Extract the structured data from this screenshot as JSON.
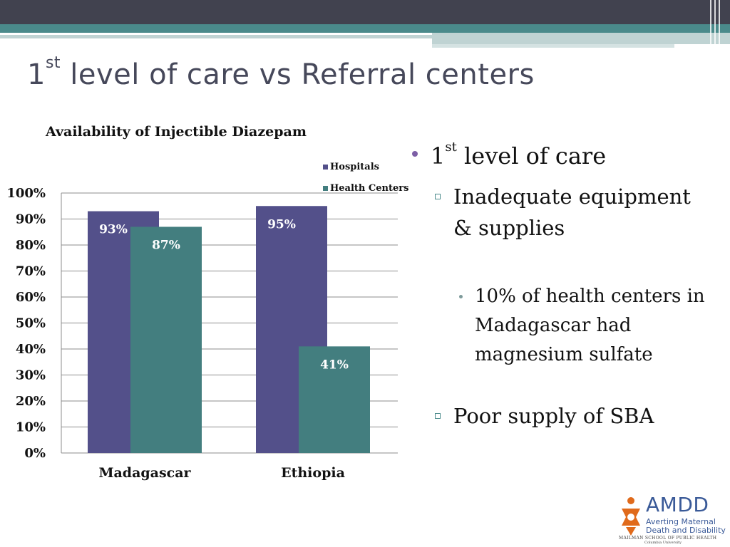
{
  "slide": {
    "title_sup_base": "1",
    "title_sup": "st",
    "title_rest": " level of care vs Referral centers"
  },
  "chart_data": {
    "type": "bar",
    "title": "Availability of Injectible Diazepam",
    "categories": [
      "Madagascar",
      "Ethiopia"
    ],
    "series": [
      {
        "name": "Hospitals",
        "values": [
          93,
          95
        ],
        "color": "#53508a"
      },
      {
        "name": "Health Centers",
        "values": [
          87,
          41
        ],
        "color": "#437e7f"
      }
    ],
    "data_labels": [
      [
        "93%",
        "95%"
      ],
      [
        "87%",
        "41%"
      ]
    ],
    "ylim": [
      0,
      100
    ],
    "yticks": [
      "0%",
      "10%",
      "20%",
      "30%",
      "40%",
      "50%",
      "60%",
      "70%",
      "80%",
      "90%",
      "100%"
    ],
    "grid": true,
    "legend_position": "top-right"
  },
  "bullets": {
    "level1_base": "1",
    "level1_sup": "st",
    "level1_rest": " level of care",
    "level2a": "Inadequate equipment  & supplies",
    "level3": "10% of health centers in Madagascar had magnesium sulfate",
    "level2b": "Poor supply of SBA"
  },
  "logo": {
    "name": "AMDD",
    "line1": "Averting Maternal",
    "line2": "Death and Disability",
    "school": "MAILMAN SCHOOL OF PUBLIC HEALTH",
    "university": "Columbia University",
    "color": "#3a5a98",
    "mark_color": "#e06a1b"
  }
}
